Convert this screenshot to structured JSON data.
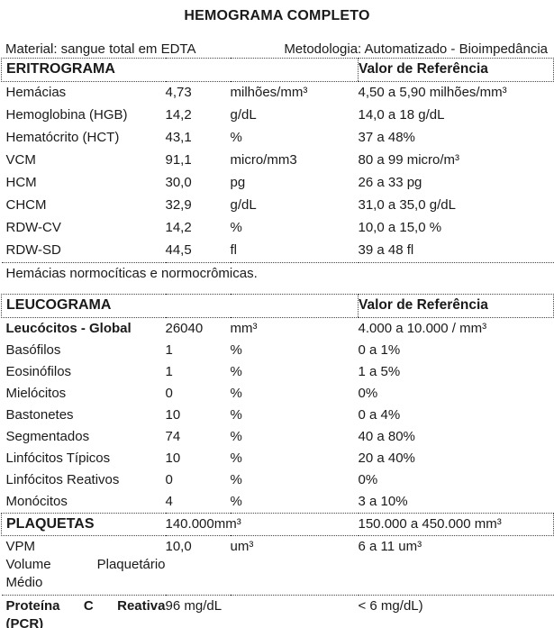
{
  "title": "HEMOGRAMA COMPLETO",
  "meta": {
    "material": "Material: sangue total em EDTA",
    "methodology": "Metodologia: Automatizado - Bioimpedância"
  },
  "eritrograma": {
    "section_title": "ERITROGRAMA",
    "reference_header": "Valor de Referência",
    "rows": [
      {
        "name": "Hemácias",
        "value": "4,73",
        "unit": "milhões/mm³",
        "reference": "4,50 a 5,90 milhões/mm³"
      },
      {
        "name": "Hemoglobina (HGB)",
        "value": "14,2",
        "unit": "g/dL",
        "reference": "14,0 a 18 g/dL"
      },
      {
        "name": "Hematócrito (HCT)",
        "value": "43,1",
        "unit": "%",
        "reference": "37 a 48%"
      },
      {
        "name": "VCM",
        "value": "91,1",
        "unit": "micro/mm3",
        "reference": "80 a 99 micro/m³"
      },
      {
        "name": "HCM",
        "value": "30,0",
        "unit": "pg",
        "reference": "26 a 33 pg"
      },
      {
        "name": "CHCM",
        "value": "32,9",
        "unit": "g/dL",
        "reference": "31,0 a 35,0 g/dL"
      },
      {
        "name": "RDW-CV",
        "value": "14,2",
        "unit": "%",
        "reference": "10,0 a 15,0 %"
      },
      {
        "name": "RDW-SD",
        "value": "44,5",
        "unit": "fl",
        "reference": "39 a 48 fl"
      }
    ],
    "note": "Hemácias normocíticas e normocrômicas."
  },
  "leucograma": {
    "section_title": "LEUCOGRAMA",
    "reference_header": "Valor de Referência",
    "rows": [
      {
        "name": "Leucócitos - Global",
        "value": "26040",
        "unit": "mm³",
        "reference": "4.000 a 10.000 / mm³"
      },
      {
        "name": "Basófilos",
        "value": "1",
        "unit": "%",
        "reference": "0 a 1%"
      },
      {
        "name": "Eosinófilos",
        "value": "1",
        "unit": "%",
        "reference": "1 a 5%"
      },
      {
        "name": "Mielócitos",
        "value": "0",
        "unit": "%",
        "reference": "0%"
      },
      {
        "name": "Bastonetes",
        "value": "10",
        "unit": "%",
        "reference": "0 a 4%"
      },
      {
        "name": "Segmentados",
        "value": "74",
        "unit": "%",
        "reference": "40 a 80%"
      },
      {
        "name": "Linfócitos Típicos",
        "value": "10",
        "unit": "%",
        "reference": "20 a 40%"
      },
      {
        "name": "Linfócitos Reativos",
        "value": "0",
        "unit": "%",
        "reference": "0%"
      },
      {
        "name": "Monócitos",
        "value": "4",
        "unit": "%",
        "reference": "3 a 10%"
      }
    ]
  },
  "plaquetas": {
    "section_title": "PLAQUETAS",
    "value": "140.000mm³",
    "reference": "150.000 a 450.000 mm³"
  },
  "vpm": {
    "name": "VPM",
    "value": "10,0",
    "unit": "um³",
    "reference": "6 a 11 um³",
    "name_word1": "Volume",
    "name_word2": "Plaquetário",
    "name_line3": "Médio"
  },
  "pcr": {
    "name_word1": "Proteína",
    "name_word2": "C",
    "name_word3": "Reativa",
    "name_line2": "(PCR)",
    "value": "96 mg/dL",
    "reference": "< 6 mg/dL)"
  }
}
